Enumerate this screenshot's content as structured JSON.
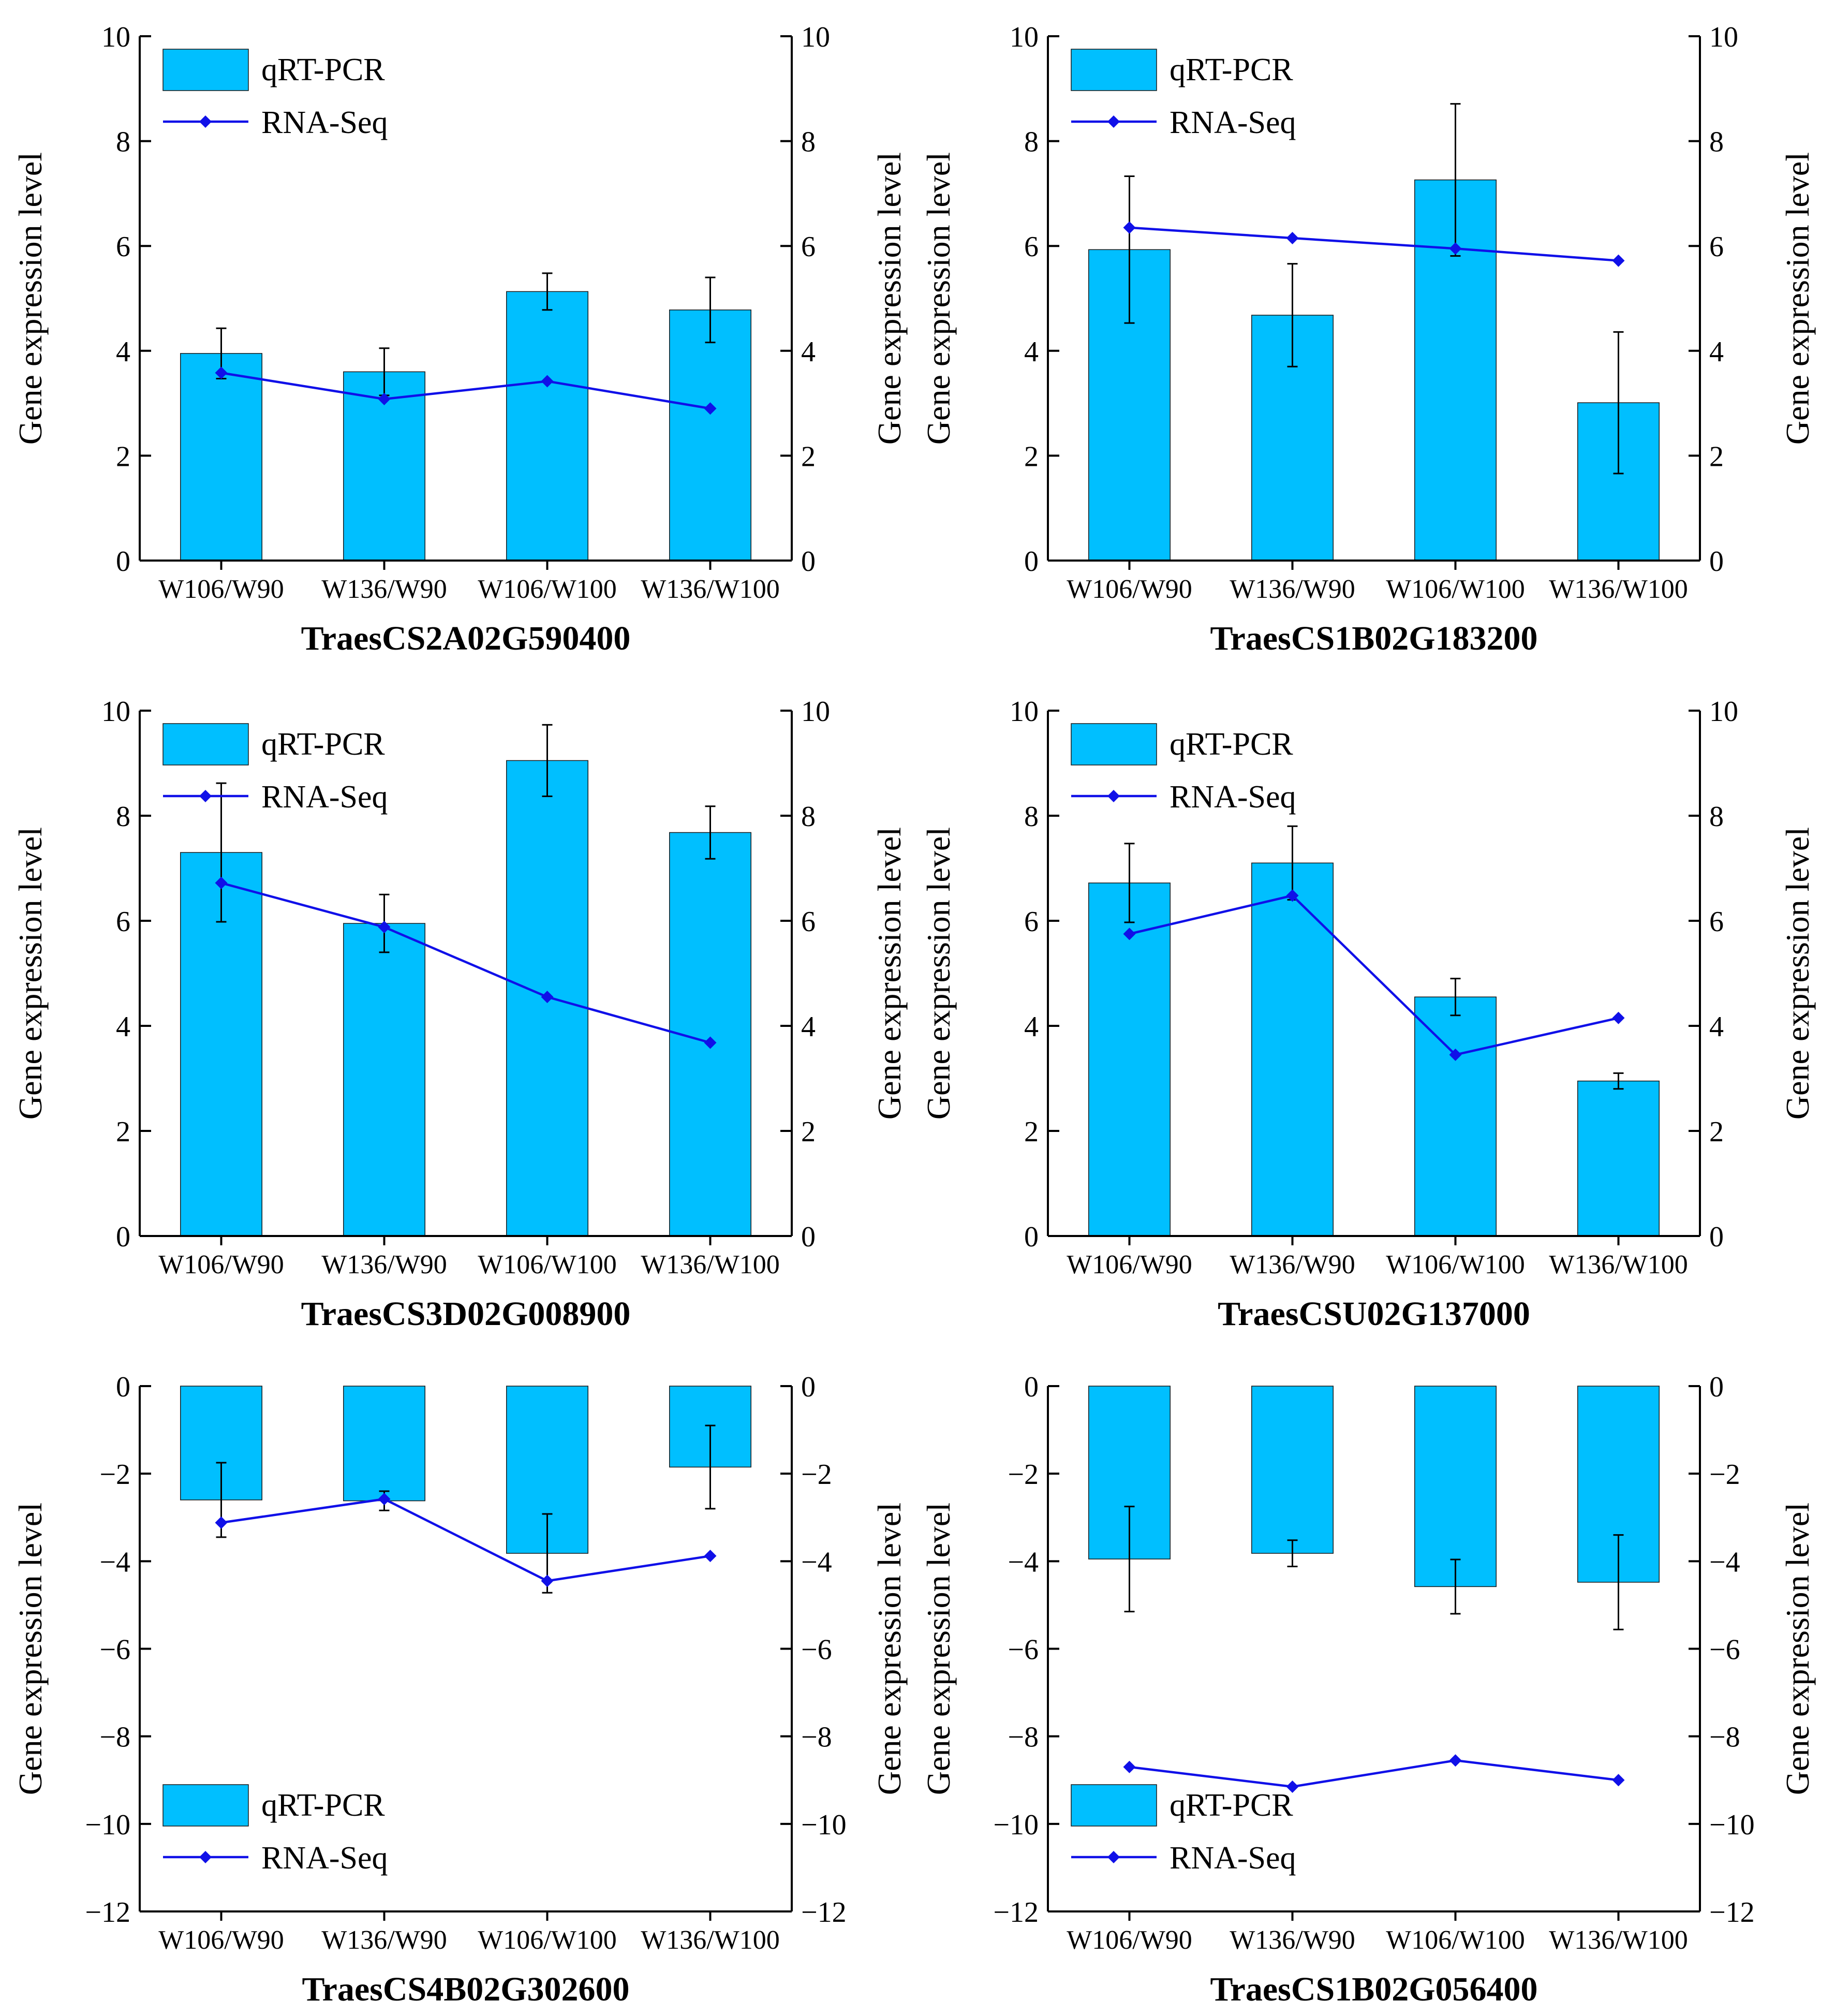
{
  "figure": {
    "ylabel": "Gene expression level",
    "legend": {
      "bar_label": "qRT-PCR",
      "line_label": "RNA-Seq"
    },
    "colors": {
      "bar_fill": "#00BFFF",
      "bar_edge": "#1a1a1a",
      "line": "#1010E8",
      "axis": "#000000"
    }
  },
  "chart_data": [
    {
      "type": "bar+line",
      "title": "TraesCS2A02G590400",
      "ylabel": "Gene expression level",
      "categories": [
        "W106/W90",
        "W136/W90",
        "W106/W100",
        "W136/W100"
      ],
      "ylim": [
        0,
        10
      ],
      "yticks": [
        0,
        2,
        4,
        6,
        8,
        10
      ],
      "legend_position": "top-left",
      "series": [
        {
          "name": "qRT-PCR",
          "kind": "bar",
          "values": [
            3.95,
            3.6,
            5.13,
            4.78
          ],
          "errors": [
            0.48,
            0.45,
            0.35,
            0.62
          ]
        },
        {
          "name": "RNA-Seq",
          "kind": "line",
          "values": [
            3.58,
            3.08,
            3.42,
            2.9
          ]
        }
      ]
    },
    {
      "type": "bar+line",
      "title": "TraesCS1B02G183200",
      "ylabel": "Gene expression level",
      "categories": [
        "W106/W90",
        "W136/W90",
        "W106/W100",
        "W136/W100"
      ],
      "ylim": [
        0,
        10
      ],
      "yticks": [
        0,
        2,
        4,
        6,
        8,
        10
      ],
      "legend_position": "top-left",
      "series": [
        {
          "name": "qRT-PCR",
          "kind": "bar",
          "values": [
            5.93,
            4.68,
            7.26,
            3.01
          ],
          "errors": [
            1.4,
            0.98,
            1.45,
            1.35
          ]
        },
        {
          "name": "RNA-Seq",
          "kind": "line",
          "values": [
            6.35,
            6.15,
            5.95,
            5.72
          ]
        }
      ]
    },
    {
      "type": "bar+line",
      "title": "TraesCS3D02G008900",
      "ylabel": "Gene expression level",
      "categories": [
        "W106/W90",
        "W136/W90",
        "W106/W100",
        "W136/W100"
      ],
      "ylim": [
        0,
        10
      ],
      "yticks": [
        0,
        2,
        4,
        6,
        8,
        10
      ],
      "legend_position": "top-left",
      "series": [
        {
          "name": "qRT-PCR",
          "kind": "bar",
          "values": [
            7.3,
            5.95,
            9.05,
            7.68
          ],
          "errors": [
            1.32,
            0.55,
            0.68,
            0.5
          ]
        },
        {
          "name": "RNA-Seq",
          "kind": "line",
          "values": [
            6.72,
            5.88,
            4.55,
            3.68
          ]
        }
      ]
    },
    {
      "type": "bar+line",
      "title": "TraesCSU02G137000",
      "ylabel": "Gene expression level",
      "categories": [
        "W106/W90",
        "W136/W90",
        "W106/W100",
        "W136/W100"
      ],
      "ylim": [
        0,
        10
      ],
      "yticks": [
        0,
        2,
        4,
        6,
        8,
        10
      ],
      "legend_position": "top-left",
      "series": [
        {
          "name": "qRT-PCR",
          "kind": "bar",
          "values": [
            6.72,
            7.1,
            4.55,
            2.95
          ],
          "errors": [
            0.75,
            0.7,
            0.35,
            0.15
          ]
        },
        {
          "name": "RNA-Seq",
          "kind": "line",
          "values": [
            5.75,
            6.48,
            3.45,
            4.15
          ]
        }
      ]
    },
    {
      "type": "bar+line",
      "title": "TraesCS4B02G302600",
      "ylabel": "Gene expression level",
      "categories": [
        "W106/W90",
        "W136/W90",
        "W106/W100",
        "W136/W100"
      ],
      "ylim": [
        -12,
        0
      ],
      "yticks": [
        0,
        -2,
        -4,
        -6,
        -8,
        -10,
        -12
      ],
      "legend_position": "bottom-left",
      "series": [
        {
          "name": "qRT-PCR",
          "kind": "bar",
          "values": [
            -2.6,
            -2.62,
            -3.82,
            -1.85
          ],
          "errors": [
            0.85,
            0.22,
            0.9,
            0.95
          ]
        },
        {
          "name": "RNA-Seq",
          "kind": "line",
          "values": [
            -3.12,
            -2.58,
            -4.45,
            -3.88
          ]
        }
      ]
    },
    {
      "type": "bar+line",
      "title": "TraesCS1B02G056400",
      "ylabel": "Gene expression level",
      "categories": [
        "W106/W90",
        "W136/W90",
        "W106/W100",
        "W136/W100"
      ],
      "ylim": [
        -12,
        0
      ],
      "yticks": [
        0,
        -2,
        -4,
        -6,
        -8,
        -10,
        -12
      ],
      "legend_position": "bottom-left",
      "series": [
        {
          "name": "qRT-PCR",
          "kind": "bar",
          "values": [
            -3.95,
            -3.82,
            -4.58,
            -4.48
          ],
          "errors": [
            1.2,
            0.3,
            0.62,
            1.08
          ]
        },
        {
          "name": "RNA-Seq",
          "kind": "line",
          "values": [
            -8.7,
            -9.15,
            -8.55,
            -9.0
          ]
        }
      ]
    }
  ]
}
